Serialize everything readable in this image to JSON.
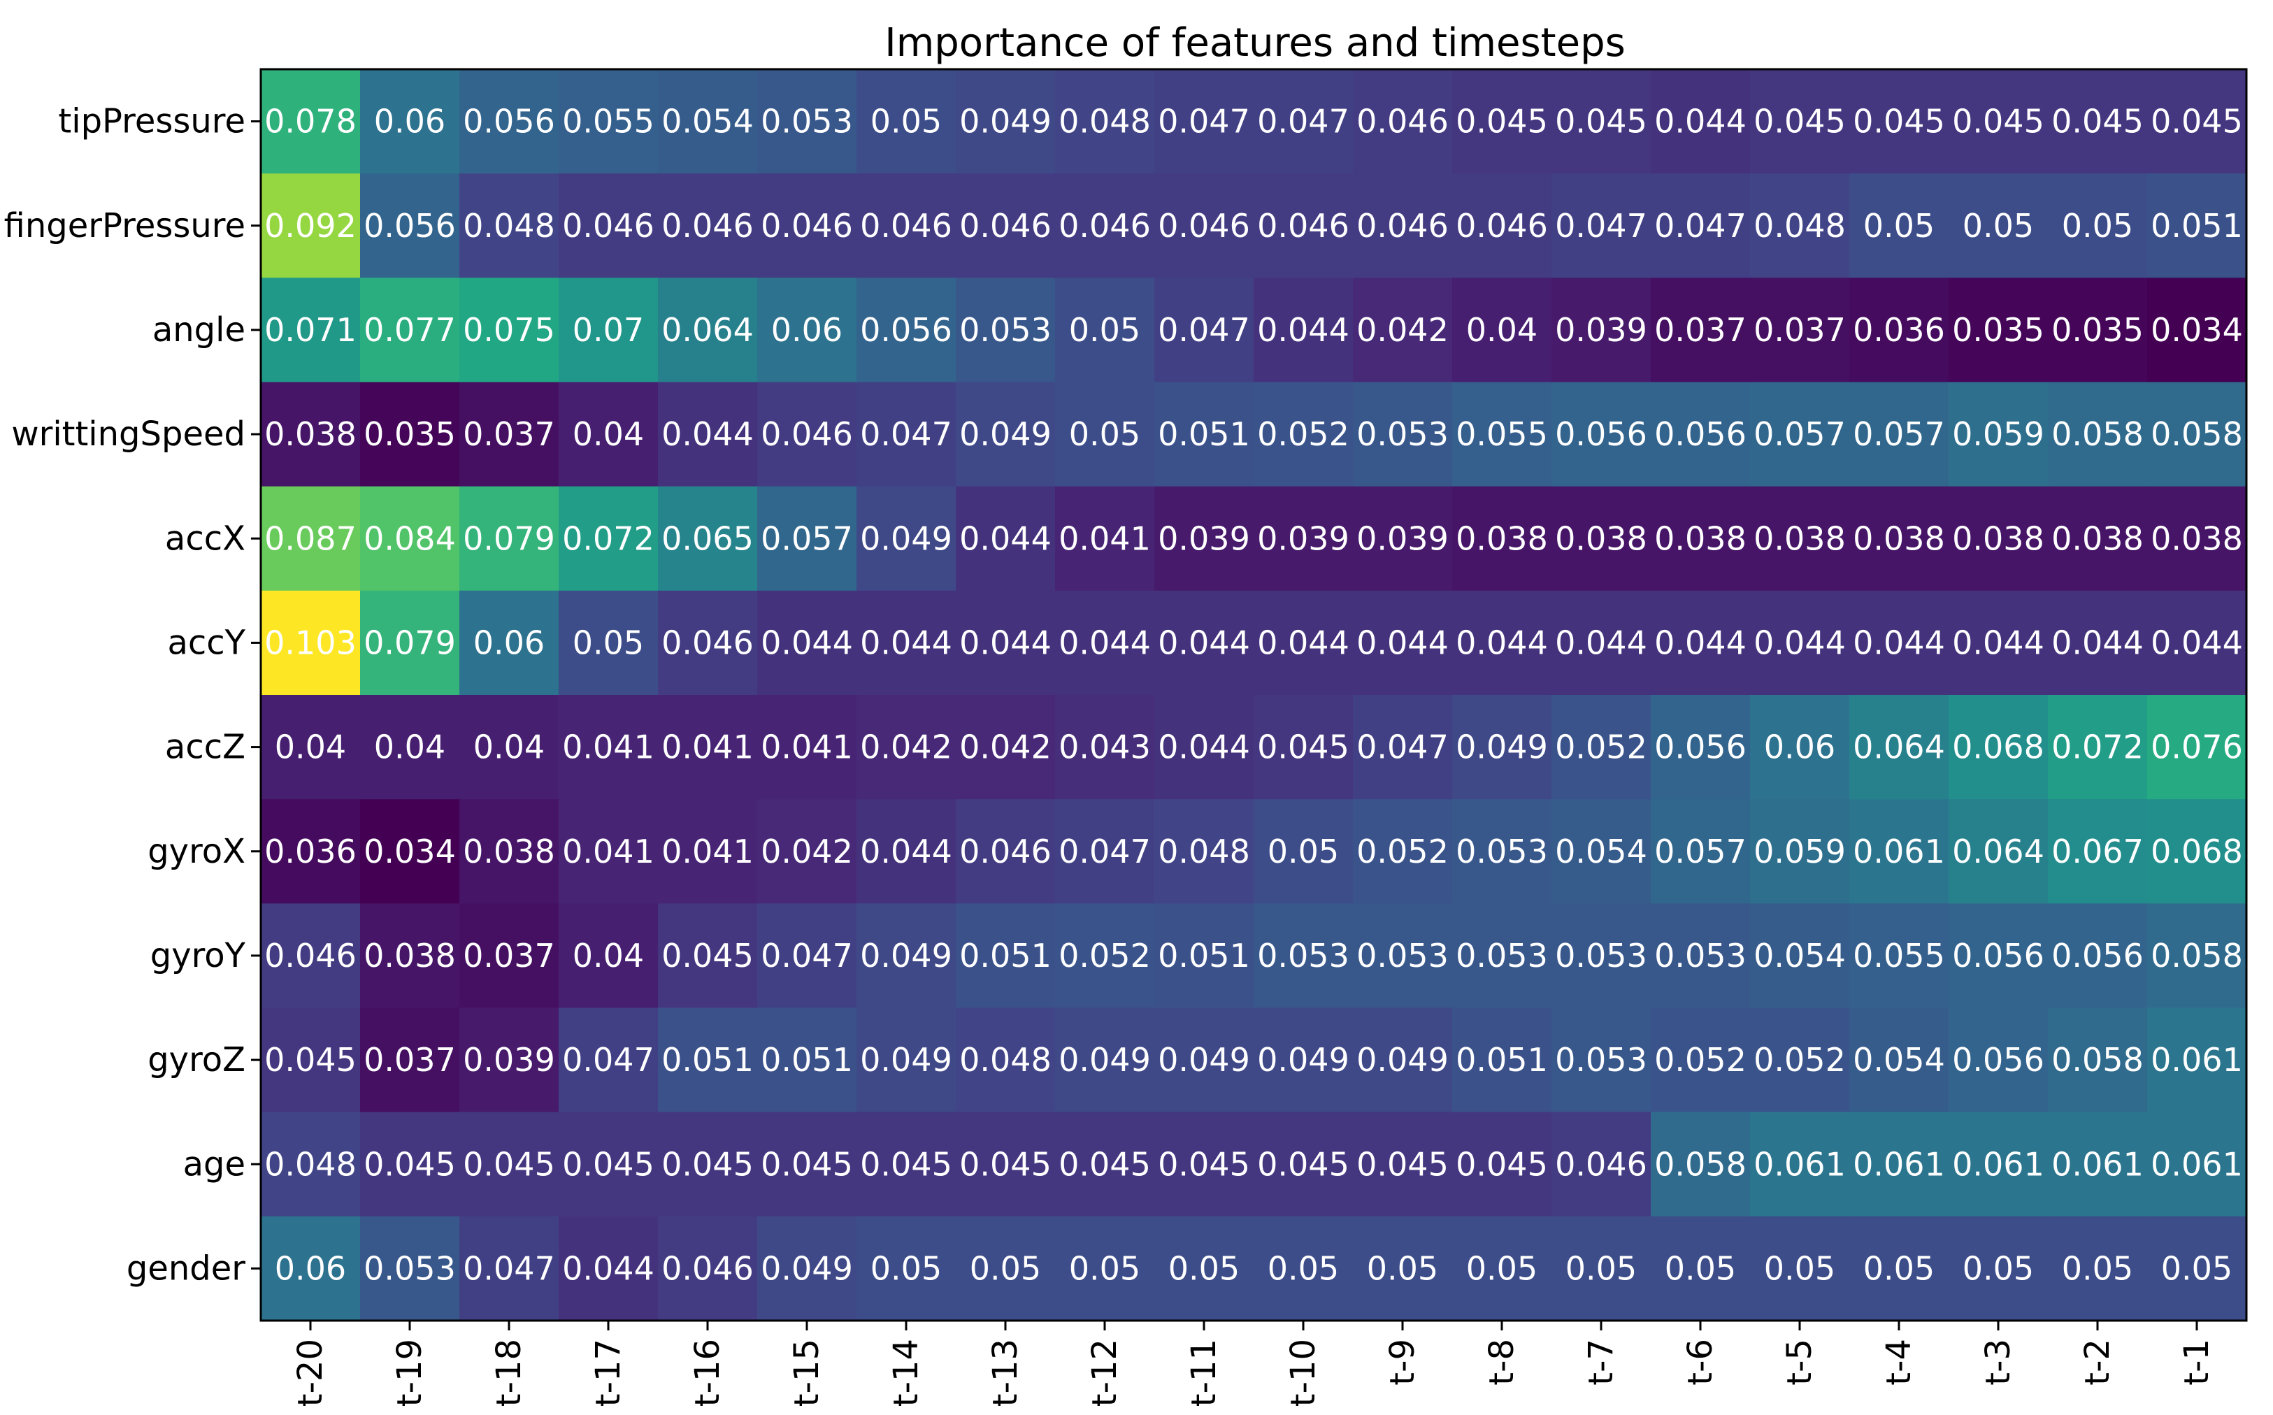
{
  "chart_data": {
    "type": "heatmap",
    "title": "Importance of features and timesteps",
    "xlabel": "",
    "ylabel": "",
    "colormap": "viridis",
    "value_range": [
      0.034,
      0.103
    ],
    "x": [
      "t-20",
      "t-19",
      "t-18",
      "t-17",
      "t-16",
      "t-15",
      "t-14",
      "t-13",
      "t-12",
      "t-11",
      "t-10",
      "t-9",
      "t-8",
      "t-7",
      "t-6",
      "t-5",
      "t-4",
      "t-3",
      "t-2",
      "t-1"
    ],
    "y": [
      "tipPressure",
      "fingerPressure",
      "angle",
      "writtingSpeed",
      "accX",
      "accY",
      "accZ",
      "gyroX",
      "gyroY",
      "gyroZ",
      "age",
      "gender"
    ],
    "values": [
      [
        "0.078",
        "0.06",
        "0.056",
        "0.055",
        "0.054",
        "0.053",
        "0.05",
        "0.049",
        "0.048",
        "0.047",
        "0.047",
        "0.046",
        "0.045",
        "0.045",
        "0.044",
        "0.045",
        "0.045",
        "0.045",
        "0.045",
        "0.045"
      ],
      [
        "0.092",
        "0.056",
        "0.048",
        "0.046",
        "0.046",
        "0.046",
        "0.046",
        "0.046",
        "0.046",
        "0.046",
        "0.046",
        "0.046",
        "0.046",
        "0.047",
        "0.047",
        "0.048",
        "0.05",
        "0.05",
        "0.05",
        "0.051"
      ],
      [
        "0.071",
        "0.077",
        "0.075",
        "0.07",
        "0.064",
        "0.06",
        "0.056",
        "0.053",
        "0.05",
        "0.047",
        "0.044",
        "0.042",
        "0.04",
        "0.039",
        "0.037",
        "0.037",
        "0.036",
        "0.035",
        "0.035",
        "0.034"
      ],
      [
        "0.038",
        "0.035",
        "0.037",
        "0.04",
        "0.044",
        "0.046",
        "0.047",
        "0.049",
        "0.05",
        "0.051",
        "0.052",
        "0.053",
        "0.055",
        "0.056",
        "0.056",
        "0.057",
        "0.057",
        "0.059",
        "0.058",
        "0.058"
      ],
      [
        "0.087",
        "0.084",
        "0.079",
        "0.072",
        "0.065",
        "0.057",
        "0.049",
        "0.044",
        "0.041",
        "0.039",
        "0.039",
        "0.039",
        "0.038",
        "0.038",
        "0.038",
        "0.038",
        "0.038",
        "0.038",
        "0.038",
        "0.038"
      ],
      [
        "0.103",
        "0.079",
        "0.06",
        "0.05",
        "0.046",
        "0.044",
        "0.044",
        "0.044",
        "0.044",
        "0.044",
        "0.044",
        "0.044",
        "0.044",
        "0.044",
        "0.044",
        "0.044",
        "0.044",
        "0.044",
        "0.044",
        "0.044"
      ],
      [
        "0.04",
        "0.04",
        "0.04",
        "0.041",
        "0.041",
        "0.041",
        "0.042",
        "0.042",
        "0.043",
        "0.044",
        "0.045",
        "0.047",
        "0.049",
        "0.052",
        "0.056",
        "0.06",
        "0.064",
        "0.068",
        "0.072",
        "0.076"
      ],
      [
        "0.036",
        "0.034",
        "0.038",
        "0.041",
        "0.041",
        "0.042",
        "0.044",
        "0.046",
        "0.047",
        "0.048",
        "0.05",
        "0.052",
        "0.053",
        "0.054",
        "0.057",
        "0.059",
        "0.061",
        "0.064",
        "0.067",
        "0.068"
      ],
      [
        "0.046",
        "0.038",
        "0.037",
        "0.04",
        "0.045",
        "0.047",
        "0.049",
        "0.051",
        "0.052",
        "0.051",
        "0.053",
        "0.053",
        "0.053",
        "0.053",
        "0.053",
        "0.054",
        "0.055",
        "0.056",
        "0.056",
        "0.058"
      ],
      [
        "0.045",
        "0.037",
        "0.039",
        "0.047",
        "0.051",
        "0.051",
        "0.049",
        "0.048",
        "0.049",
        "0.049",
        "0.049",
        "0.049",
        "0.051",
        "0.053",
        "0.052",
        "0.052",
        "0.054",
        "0.056",
        "0.058",
        "0.061"
      ],
      [
        "0.048",
        "0.045",
        "0.045",
        "0.045",
        "0.045",
        "0.045",
        "0.045",
        "0.045",
        "0.045",
        "0.045",
        "0.045",
        "0.045",
        "0.045",
        "0.046",
        "0.058",
        "0.061",
        "0.061",
        "0.061",
        "0.061",
        "0.061"
      ],
      [
        "0.06",
        "0.053",
        "0.047",
        "0.044",
        "0.046",
        "0.049",
        "0.05",
        "0.05",
        "0.05",
        "0.05",
        "0.05",
        "0.05",
        "0.05",
        "0.05",
        "0.05",
        "0.05",
        "0.05",
        "0.05",
        "0.05",
        "0.05"
      ]
    ]
  }
}
